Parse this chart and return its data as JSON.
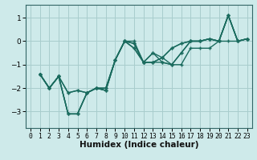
{
  "title": "",
  "xlabel": "Humidex (Indice chaleur)",
  "ylabel": "",
  "bg_color": "#ceeaea",
  "line_color": "#1a6b5e",
  "grid_color": "#a8cdcd",
  "xlim": [
    -0.5,
    23.5
  ],
  "ylim": [
    -3.7,
    1.55
  ],
  "yticks": [
    -3,
    -2,
    -1,
    0,
    1
  ],
  "xticks": [
    0,
    1,
    2,
    3,
    4,
    5,
    6,
    7,
    8,
    9,
    10,
    11,
    12,
    13,
    14,
    15,
    16,
    17,
    18,
    19,
    20,
    21,
    22,
    23
  ],
  "series": [
    [
      null,
      -1.4,
      -2.0,
      -1.5,
      -3.1,
      -3.1,
      -2.2,
      -2.0,
      -2.0,
      -0.8,
      0.0,
      -0.1,
      -0.9,
      -0.9,
      -0.7,
      -0.3,
      -0.1,
      0.0,
      0.0,
      0.1,
      0.0,
      1.1,
      0.0,
      0.1
    ],
    [
      null,
      -1.4,
      -2.0,
      -1.5,
      -3.1,
      -3.1,
      -2.2,
      -2.0,
      -2.0,
      -0.8,
      0.0,
      -0.3,
      -0.9,
      -0.5,
      -0.9,
      -1.0,
      -0.5,
      0.0,
      0.0,
      0.1,
      0.0,
      1.1,
      0.0,
      0.1
    ],
    [
      null,
      -1.4,
      -2.0,
      -1.5,
      -2.2,
      -2.1,
      -2.2,
      -2.0,
      -2.1,
      -0.8,
      0.0,
      -0.3,
      -0.9,
      -0.5,
      -0.7,
      -1.0,
      -0.5,
      0.0,
      0.0,
      0.1,
      0.0,
      1.1,
      0.0,
      0.1
    ],
    [
      null,
      -1.4,
      -2.0,
      -1.5,
      -2.2,
      -2.1,
      -2.2,
      -2.0,
      -2.1,
      -0.8,
      0.0,
      -0.1,
      -0.9,
      -0.9,
      -0.7,
      -0.3,
      -0.1,
      0.0,
      0.0,
      0.1,
      0.0,
      1.1,
      0.0,
      0.1
    ],
    [
      null,
      -1.4,
      -2.0,
      -1.5,
      -3.1,
      -3.1,
      -2.2,
      -2.0,
      -2.1,
      -0.8,
      0.0,
      0.0,
      -0.9,
      -0.9,
      -0.9,
      -1.0,
      -1.0,
      -0.3,
      -0.3,
      -0.3,
      0.0,
      0.0,
      0.0,
      0.1
    ]
  ],
  "tick_fontsize": 6.5,
  "xlabel_fontsize": 7.5,
  "linewidth": 1.0,
  "markersize": 3.5,
  "markeredgewidth": 1.0
}
